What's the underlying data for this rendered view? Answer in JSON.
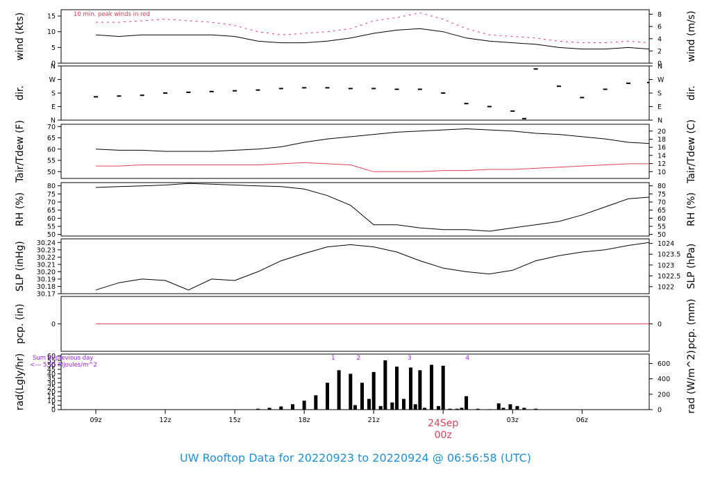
{
  "figure": {
    "title": "UW Rooftop Data for 20220923  to  20220924 @ 06:56:58  (UTC)",
    "date_change": {
      "date": "24Sep",
      "time": "00z"
    },
    "colors": {
      "title": "#1e90d8",
      "accent": "#e0405a",
      "purple": "#a020f0",
      "line": "#000000"
    }
  },
  "chart_data": [
    {
      "type": "line",
      "id": "wind",
      "ylabel_left": "wind (kts)",
      "ylabel_right": "wind (m/s)",
      "ylim": [
        0,
        17
      ],
      "yticks_left": [
        0,
        5,
        10,
        15
      ],
      "yticks_right": [
        0,
        2,
        4,
        6,
        8
      ],
      "right_ticks_in": "m/s",
      "annotation": "10 min. peak winds in red",
      "x": [
        0,
        1,
        2,
        3,
        4,
        5,
        6,
        7,
        8,
        9,
        10,
        11,
        12,
        13,
        14,
        15,
        16,
        17,
        18,
        19,
        20,
        21,
        22,
        23,
        23.9
      ],
      "series": [
        {
          "values": [
            9,
            8.5,
            9,
            9,
            9,
            9,
            8.5,
            7,
            6.5,
            6.5,
            7,
            8,
            9.5,
            10.5,
            11,
            10,
            8,
            7,
            6.5,
            6,
            5,
            4.5,
            4.5,
            5,
            4.5
          ]
        },
        {
          "values": [
            13,
            13,
            13.5,
            14,
            13.5,
            13,
            12,
            10,
            9,
            9.5,
            10,
            11,
            13.5,
            14.5,
            16,
            14,
            11,
            9,
            8.5,
            8,
            7,
            6.5,
            6.5,
            7,
            6.5
          ],
          "color": "accent",
          "style": "dash"
        }
      ]
    },
    {
      "type": "scatter",
      "id": "direction",
      "ylabel_left": "dir.",
      "ylabel_right": "dir.",
      "ylim": [
        0,
        360
      ],
      "yticks_left": [
        "N",
        "E",
        "S",
        "W",
        "N"
      ],
      "yticks_right": [
        "N",
        "E",
        "S",
        "W",
        "N"
      ],
      "x": [
        0,
        1,
        2,
        3,
        4,
        5,
        6,
        7,
        8,
        9,
        10,
        11,
        12,
        13,
        14,
        15,
        16,
        17,
        18,
        18.5,
        19,
        20,
        21,
        22,
        23,
        23.9
      ],
      "series": [
        {
          "values": [
            155,
            160,
            165,
            180,
            185,
            190,
            195,
            200,
            210,
            215,
            215,
            210,
            210,
            205,
            205,
            180,
            110,
            90,
            60,
            10,
            340,
            225,
            150,
            205,
            245,
            250
          ]
        }
      ]
    },
    {
      "type": "line",
      "id": "temperature",
      "ylabel_left": "Tair/Tdew (F)",
      "ylabel_right": "Tair/Tdew (C)",
      "ylim": [
        47,
        71
      ],
      "yticks_left": [
        50,
        55,
        60,
        65,
        70
      ],
      "yticks_right": [
        10,
        12,
        14,
        16,
        18,
        20
      ],
      "right_ticks_in": "C",
      "x": [
        0,
        1,
        2,
        3,
        4,
        5,
        6,
        7,
        8,
        9,
        10,
        11,
        12,
        13,
        14,
        15,
        16,
        17,
        18,
        19,
        20,
        21,
        22,
        23,
        23.9
      ],
      "series": [
        {
          "values": [
            60,
            59.5,
            59.5,
            59,
            59,
            59,
            59.5,
            60,
            61,
            63,
            64.5,
            65.5,
            66.5,
            67.5,
            68,
            68.5,
            69,
            68.5,
            68,
            67,
            66.5,
            65.5,
            64.5,
            63,
            62.5
          ]
        },
        {
          "values": [
            52.5,
            52.5,
            53,
            53,
            53,
            53,
            53,
            53,
            53.5,
            54,
            53.5,
            53,
            50,
            50,
            50,
            50.5,
            50.5,
            51,
            51,
            51.5,
            52,
            52.5,
            53,
            53.5,
            53.5
          ],
          "color": "accent"
        }
      ]
    },
    {
      "type": "line",
      "id": "humidity",
      "ylabel_left": "RH (%)",
      "ylabel_right": "RH (%)",
      "ylim": [
        49,
        82
      ],
      "yticks_left": [
        50,
        55,
        60,
        65,
        70,
        75,
        80
      ],
      "yticks_right": [
        50,
        55,
        60,
        65,
        70,
        75,
        80
      ],
      "right_ticks_in": "%",
      "x": [
        0,
        1,
        2,
        3,
        4,
        5,
        6,
        7,
        8,
        9,
        10,
        11,
        12,
        13,
        14,
        15,
        16,
        17,
        18,
        19,
        20,
        21,
        22,
        23,
        23.9
      ],
      "series": [
        {
          "values": [
            79,
            79.5,
            80,
            80.5,
            81.5,
            81,
            80.5,
            80,
            79.5,
            78,
            74,
            68,
            56,
            56,
            54,
            53,
            53,
            52,
            54,
            56,
            58,
            62,
            67,
            72,
            73
          ]
        }
      ]
    },
    {
      "type": "line",
      "id": "pressure",
      "ylabel_left": "SLP (inHg)",
      "ylabel_right": "SLP (hPa)",
      "ylim": [
        30.17,
        30.245
      ],
      "yticks_left": [
        "30.17",
        "30.18",
        "30.19",
        "30.20",
        "30.21",
        "30.22",
        "30.23",
        "30.24"
      ],
      "yticks_right": [
        "1022",
        "1022.5",
        "1023",
        "1023.5",
        "1024"
      ],
      "right_ticks_in": "hPa",
      "x": [
        0,
        1,
        2,
        3,
        4,
        5,
        6,
        7,
        8,
        9,
        10,
        11,
        12,
        13,
        14,
        15,
        16,
        17,
        18,
        19,
        20,
        21,
        22,
        23,
        23.9
      ],
      "series": [
        {
          "values": [
            30.175,
            30.185,
            30.19,
            30.188,
            30.175,
            30.19,
            30.188,
            30.2,
            30.215,
            30.225,
            30.234,
            30.237,
            30.234,
            30.227,
            30.215,
            30.205,
            30.2,
            30.197,
            30.202,
            30.215,
            30.222,
            30.227,
            30.23,
            30.236,
            30.24
          ]
        }
      ]
    },
    {
      "type": "line",
      "id": "precipitation",
      "ylabel_left": "pcp. (in)",
      "ylabel_right": "pcp. (mm)",
      "ylim": [
        -1,
        1
      ],
      "yticks_left": [
        0
      ],
      "yticks_right": [
        0
      ],
      "x": [
        0,
        23.9
      ],
      "series": [
        {
          "values": [
            0,
            0
          ],
          "color": "accent"
        }
      ]
    },
    {
      "type": "bar",
      "id": "radiation",
      "ylabel_left": "rad(Lgly/hr)",
      "ylabel_right": "rad (W/m^2)",
      "ylim": [
        0,
        62
      ],
      "yticks_left": [
        0,
        5,
        10,
        15,
        20,
        25,
        30,
        35,
        40,
        45,
        50,
        55,
        60
      ],
      "yticks_right": [
        0,
        200,
        400,
        600
      ],
      "right_ticks_in": "W/m^2",
      "annotation_lines": [
        "Sum of previous day",
        "<--- 5.55 MJoules/m^2"
      ],
      "markers": [
        {
          "label": "1",
          "x": 10.25
        },
        {
          "label": "2",
          "x": 11.35
        },
        {
          "label": "3",
          "x": 13.55
        },
        {
          "label": "4",
          "x": 16.05
        }
      ],
      "x": [
        6.5,
        7,
        7.5,
        8,
        8.5,
        9,
        9.5,
        10,
        10.5,
        11,
        11.2,
        11.5,
        11.8,
        12,
        12.3,
        12.5,
        12.8,
        13,
        13.3,
        13.6,
        13.8,
        14,
        14.2,
        14.5,
        14.8,
        15,
        15.3,
        15.6,
        15.8,
        16,
        16.5,
        17,
        17.4,
        17.6,
        17.9,
        18.2,
        18.5,
        19,
        19.5
      ],
      "series": [
        {
          "values": [
            0.3,
            1,
            2,
            3.5,
            6,
            10,
            16,
            30,
            44,
            40,
            5,
            30,
            12,
            42,
            4,
            55,
            8,
            48,
            12,
            47,
            6,
            44,
            2,
            50,
            4,
            49,
            1,
            1,
            2,
            15,
            1,
            0.5,
            7,
            2,
            6,
            4,
            2,
            1,
            0.3
          ]
        }
      ]
    }
  ],
  "x_axis": {
    "range_hours": [
      -1.5,
      23.9
    ],
    "ticks": [
      {
        "label": "09z",
        "h": 0
      },
      {
        "label": "12z",
        "h": 3
      },
      {
        "label": "15z",
        "h": 6
      },
      {
        "label": "18z",
        "h": 9
      },
      {
        "label": "21z",
        "h": 12
      },
      {
        "label": "03z",
        "h": 18
      },
      {
        "label": "06z",
        "h": 21
      }
    ],
    "day_change_h": 15
  }
}
